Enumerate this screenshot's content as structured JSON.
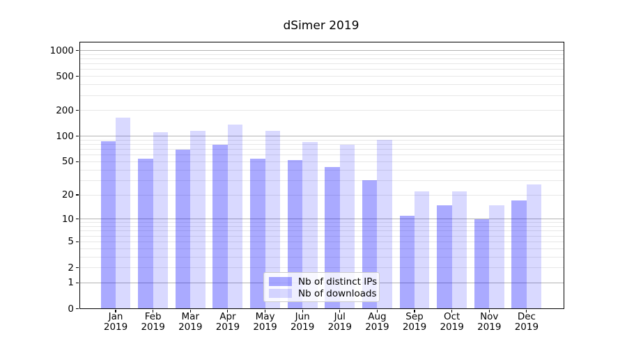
{
  "title": "dSimer 2019",
  "colors": {
    "series_ips_flat": "#aaaaff",
    "series_downloads_flat": "#d9d9ff",
    "series_ips_overlay": "rgba(0,0,255,0.333)",
    "series_downloads_overlay": "rgba(0,0,255,0.149)",
    "grid_major": "#b3b3b3",
    "grid_minor": "#e7e7e7",
    "axis": "#000000",
    "legend_border": "#cccccc"
  },
  "chart_data": {
    "type": "bar",
    "title": "dSimer 2019",
    "xlabel": "",
    "ylabel": "",
    "year": "2019",
    "categories": [
      "Jan",
      "Feb",
      "Mar",
      "Apr",
      "May",
      "Jun",
      "Jul",
      "Aug",
      "Sep",
      "Oct",
      "Nov",
      "Dec"
    ],
    "series": [
      {
        "name": "Nb of distinct IPs",
        "color": "#aaaaff",
        "values": [
          87,
          54,
          70,
          79,
          54,
          52,
          43,
          30,
          11,
          15,
          10,
          17
        ]
      },
      {
        "name": "Nb of downloads",
        "color": "#d9d9ff",
        "values": [
          164,
          111,
          116,
          137,
          116,
          86,
          80,
          90,
          22,
          22,
          15,
          27
        ]
      }
    ],
    "y_scale": "log1p",
    "ylim": [
      0,
      1265
    ],
    "xlim": [
      -0.98,
      12.0
    ],
    "bar_width_fraction": 0.4,
    "yticks": [
      0,
      1,
      2,
      5,
      10,
      20,
      50,
      100,
      200,
      500,
      1000
    ],
    "ytick_labels": [
      "0",
      "1",
      "2",
      "5",
      "10",
      "20",
      "50",
      "100",
      "200",
      "500",
      "1000"
    ],
    "major_gridlines": [
      1,
      10,
      100,
      1000
    ],
    "minor_gridlines": [
      2,
      3,
      4,
      5,
      6,
      7,
      8,
      9,
      20,
      30,
      40,
      50,
      60,
      70,
      80,
      90,
      200,
      300,
      400,
      500,
      600,
      700,
      800,
      900
    ],
    "grid": "both",
    "legend_position": "lower center"
  }
}
